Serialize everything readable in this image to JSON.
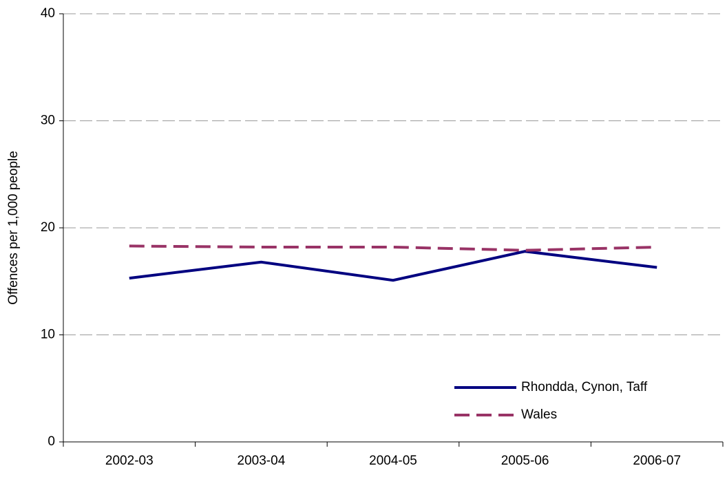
{
  "chart_data": {
    "type": "line",
    "y_label": "Offences per 1,000 people",
    "categories": [
      "2002-03",
      "2003-04",
      "2004-05",
      "2005-06",
      "2006-07"
    ],
    "series": [
      {
        "name": "Rhondda, Cynon, Taff",
        "color": "#000080",
        "dash": "solid",
        "values": [
          15.3,
          16.8,
          15.1,
          17.8,
          16.3
        ]
      },
      {
        "name": "Wales",
        "color": "#993366",
        "dash": "dashed",
        "values": [
          18.3,
          18.2,
          18.2,
          17.9,
          18.2
        ]
      }
    ],
    "ylim": [
      0,
      40
    ],
    "yticks": [
      0,
      10,
      20,
      30,
      40
    ],
    "grid": true,
    "legend": "lower right"
  }
}
